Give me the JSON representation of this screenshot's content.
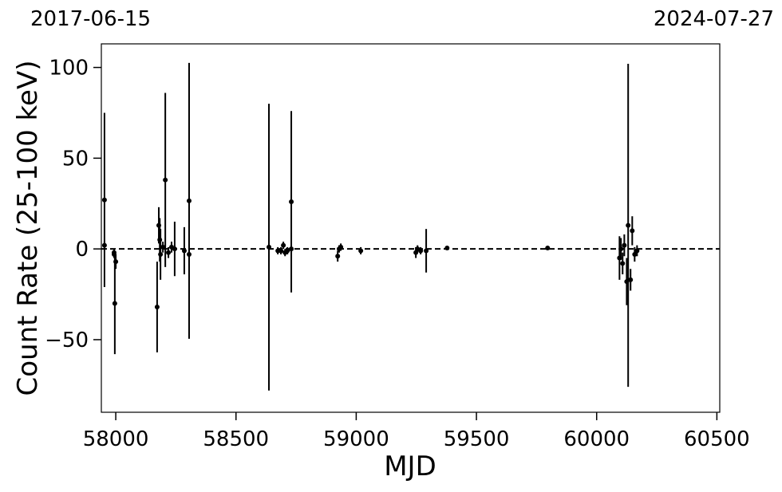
{
  "chart_data": {
    "type": "errorbar",
    "annotations": [
      "2017-06-15",
      "2024-07-27"
    ],
    "xlabel": "MJD",
    "ylabel": "Count Rate (25-100 keV)",
    "xlim": [
      57940,
      60512
    ],
    "ylim": [
      -90,
      113
    ],
    "xticks": [
      58000,
      58500,
      59000,
      59500,
      60000,
      60500
    ],
    "yticks": [
      {
        "value": -50,
        "label": "−50"
      },
      0,
      50,
      100
    ],
    "hline": 0,
    "color": "#000000",
    "x": [
      57953,
      57953,
      57993,
      57993,
      57996,
      58000,
      58172,
      58179,
      58183,
      58186,
      58196,
      58206,
      58219,
      58232,
      58245,
      58285,
      58305,
      58305,
      58637,
      58674,
      58687,
      58697,
      58704,
      58714,
      58730,
      58730,
      58923,
      58929,
      58936,
      59019,
      59248,
      59255,
      59268,
      59291,
      59378,
      59796,
      60095,
      60101,
      60108,
      60115,
      60125,
      60131,
      60141,
      60148,
      60158,
      60168
    ],
    "values": [
      27,
      2,
      -2,
      -3,
      -30,
      -7,
      -32,
      13,
      5,
      -3,
      1,
      38,
      -2,
      1,
      0,
      -1,
      26.5,
      -3,
      1,
      -1,
      -1,
      2,
      -2,
      -1,
      26,
      0,
      -4,
      0,
      1,
      -1,
      -2,
      0,
      -1,
      -1,
      0.5,
      0.5,
      -5,
      0,
      -8,
      2,
      -18,
      13,
      -17,
      10,
      -3,
      -1
    ],
    "errors": [
      48,
      2,
      2,
      2,
      28,
      4,
      25,
      10,
      12,
      14,
      3,
      48,
      3,
      3,
      15,
      13,
      76,
      3,
      79,
      2,
      2,
      2,
      2,
      2,
      50,
      2,
      3,
      2,
      2,
      2,
      3,
      2,
      2,
      12,
      1,
      1,
      12,
      6,
      6,
      6,
      13,
      89,
      6,
      8,
      4,
      3
    ]
  }
}
